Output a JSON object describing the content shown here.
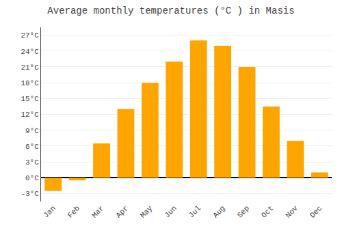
{
  "chart_data": {
    "type": "bar",
    "title": "Average monthly temperatures (°C ) in Masis",
    "categories": [
      "Jan",
      "Feb",
      "Mar",
      "Apr",
      "May",
      "Jun",
      "Jul",
      "Aug",
      "Sep",
      "Oct",
      "Nov",
      "Dec"
    ],
    "values": [
      -2.5,
      -0.5,
      6.5,
      13.0,
      18.0,
      22.0,
      26.0,
      25.0,
      21.0,
      13.5,
      7.0,
      1.0
    ],
    "color": "#FFA500",
    "ylim": [
      -4.5,
      28.5
    ],
    "yticks": [
      {
        "value": -3,
        "label": "-3°C"
      },
      {
        "value": 0,
        "label": "0°C"
      },
      {
        "value": 3,
        "label": "3°C"
      },
      {
        "value": 6,
        "label": "6°C"
      },
      {
        "value": 9,
        "label": "9°C"
      },
      {
        "value": 12,
        "label": "12°C"
      },
      {
        "value": 15,
        "label": "15°C"
      },
      {
        "value": 18,
        "label": "18°C"
      },
      {
        "value": 21,
        "label": "21°C"
      },
      {
        "value": 24,
        "label": "24°C"
      },
      {
        "value": 27,
        "label": "27°C"
      }
    ],
    "grid": true
  }
}
